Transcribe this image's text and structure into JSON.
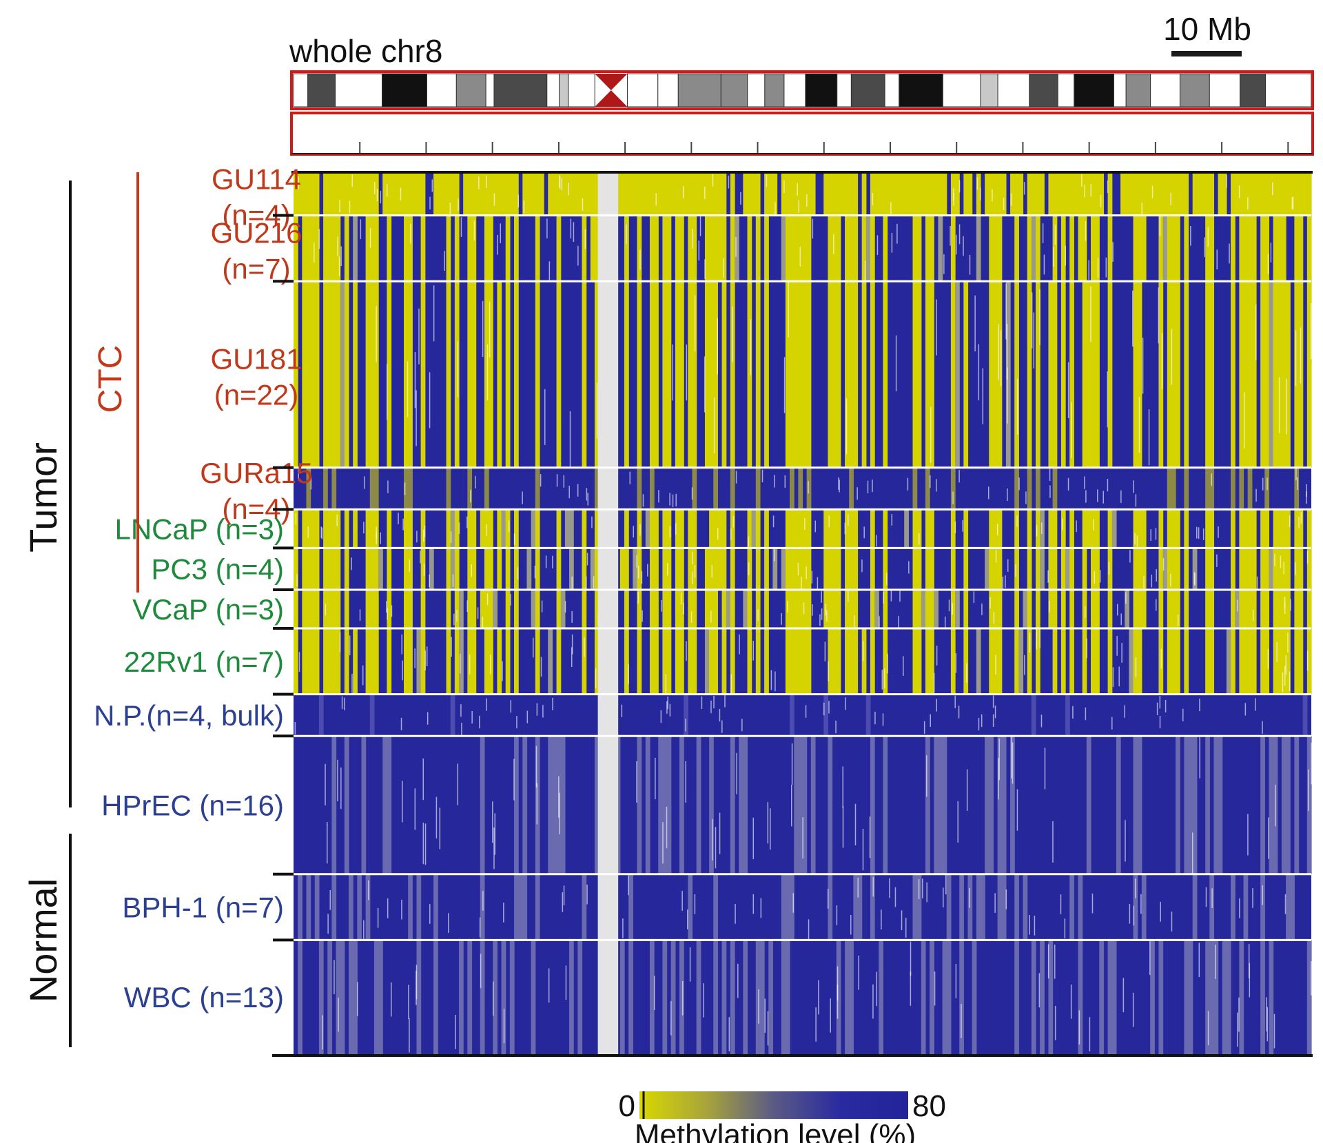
{
  "chart_data": {
    "type": "heatmap",
    "title": "whole chr8",
    "scale_bar_label": "10 Mb",
    "colorbar": {
      "min_label": "0",
      "max_label": "80",
      "label": "Methylation level (%)",
      "range": [
        0,
        80
      ],
      "colors": [
        "#d8d800",
        "#a8a43c",
        "#5a5a86",
        "#2a2aa0",
        "#24249a"
      ]
    },
    "groups": [
      {
        "name": "Tumor",
        "color": "#111111"
      },
      {
        "name": "Normal",
        "color": "#111111"
      }
    ],
    "subgroups": [
      {
        "name": "CTC",
        "color": "#c0391b"
      }
    ],
    "rows": [
      {
        "label": "GU114",
        "n_label": "(n=4)",
        "n": 4,
        "group": "Tumor",
        "subgroup": "CTC",
        "label_color": "#c0391b",
        "pattern": "hyper"
      },
      {
        "label": "GU216",
        "n_label": "(n=7)",
        "n": 7,
        "group": "Tumor",
        "subgroup": "CTC",
        "label_color": "#c0391b",
        "pattern": "mixed"
      },
      {
        "label": "GU181",
        "n_label": "(n=22)",
        "n": 22,
        "group": "Tumor",
        "subgroup": "CTC",
        "label_color": "#c0391b",
        "pattern": "mixed"
      },
      {
        "label": "GURa15",
        "n_label": "(n=4)",
        "n": 4,
        "group": "Tumor",
        "subgroup": "CTC",
        "label_color": "#c0391b",
        "pattern": "hypo"
      },
      {
        "label": "LNCaP (n=3)",
        "n_label": "",
        "n": 3,
        "group": "Tumor",
        "label_color": "#1e8a3c",
        "pattern": "mixed"
      },
      {
        "label": "PC3 (n=4)",
        "n_label": "",
        "n": 4,
        "group": "Tumor",
        "label_color": "#1e8a3c",
        "pattern": "mixed"
      },
      {
        "label": "VCaP (n=3)",
        "n_label": "",
        "n": 3,
        "group": "Tumor",
        "label_color": "#1e8a3c",
        "pattern": "mixed"
      },
      {
        "label": "22Rv1 (n=7)",
        "n_label": "",
        "n": 7,
        "group": "Tumor",
        "label_color": "#1e8a3c",
        "pattern": "mixed"
      },
      {
        "label": "N.P.(n=4, bulk)",
        "n_label": "",
        "n": 4,
        "group": "Normal",
        "label_color": "#2b3f93",
        "pattern": "uniform"
      },
      {
        "label": "HPrEC (n=16)",
        "n_label": "",
        "n": 16,
        "group": "Normal",
        "label_color": "#2b3f93",
        "pattern": "speckled"
      },
      {
        "label": "BPH-1 (n=7)",
        "n_label": "",
        "n": 7,
        "group": "Normal",
        "label_color": "#2b3f93",
        "pattern": "speckled"
      },
      {
        "label": "WBC (n=13)",
        "n_label": "",
        "n": 13,
        "group": "Normal",
        "label_color": "#2b3f93",
        "pattern": "speckled"
      }
    ],
    "ideogram_bands": [
      {
        "start": 0.0,
        "end": 0.014,
        "stain": "gneg"
      },
      {
        "start": 0.014,
        "end": 0.041,
        "stain": "gpos75"
      },
      {
        "start": 0.041,
        "end": 0.087,
        "stain": "gneg"
      },
      {
        "start": 0.087,
        "end": 0.131,
        "stain": "gpos100"
      },
      {
        "start": 0.131,
        "end": 0.16,
        "stain": "gneg"
      },
      {
        "start": 0.16,
        "end": 0.189,
        "stain": "gpos50"
      },
      {
        "start": 0.189,
        "end": 0.197,
        "stain": "gneg"
      },
      {
        "start": 0.197,
        "end": 0.249,
        "stain": "gpos75"
      },
      {
        "start": 0.249,
        "end": 0.261,
        "stain": "gneg"
      },
      {
        "start": 0.261,
        "end": 0.27,
        "stain": "gvar"
      },
      {
        "start": 0.27,
        "end": 0.296,
        "stain": "gneg"
      },
      {
        "start": 0.296,
        "end": 0.328,
        "stain": "acen"
      },
      {
        "start": 0.328,
        "end": 0.358,
        "stain": "gneg"
      },
      {
        "start": 0.358,
        "end": 0.378,
        "stain": "gneg"
      },
      {
        "start": 0.378,
        "end": 0.42,
        "stain": "gpos50"
      },
      {
        "start": 0.42,
        "end": 0.446,
        "stain": "gpos50"
      },
      {
        "start": 0.446,
        "end": 0.463,
        "stain": "gneg"
      },
      {
        "start": 0.463,
        "end": 0.482,
        "stain": "gpos50"
      },
      {
        "start": 0.482,
        "end": 0.503,
        "stain": "gneg"
      },
      {
        "start": 0.503,
        "end": 0.534,
        "stain": "gpos100"
      },
      {
        "start": 0.534,
        "end": 0.548,
        "stain": "gneg"
      },
      {
        "start": 0.548,
        "end": 0.581,
        "stain": "gpos75"
      },
      {
        "start": 0.581,
        "end": 0.595,
        "stain": "gneg"
      },
      {
        "start": 0.595,
        "end": 0.638,
        "stain": "gpos100"
      },
      {
        "start": 0.638,
        "end": 0.675,
        "stain": "gneg"
      },
      {
        "start": 0.675,
        "end": 0.692,
        "stain": "gvar"
      },
      {
        "start": 0.692,
        "end": 0.723,
        "stain": "gneg"
      },
      {
        "start": 0.723,
        "end": 0.751,
        "stain": "gpos75"
      },
      {
        "start": 0.751,
        "end": 0.767,
        "stain": "gneg"
      },
      {
        "start": 0.767,
        "end": 0.806,
        "stain": "gpos100"
      },
      {
        "start": 0.806,
        "end": 0.818,
        "stain": "gneg"
      },
      {
        "start": 0.818,
        "end": 0.842,
        "stain": "gpos50"
      },
      {
        "start": 0.842,
        "end": 0.871,
        "stain": "gneg"
      },
      {
        "start": 0.871,
        "end": 0.9,
        "stain": "gpos50"
      },
      {
        "start": 0.9,
        "end": 0.93,
        "stain": "gneg"
      },
      {
        "start": 0.93,
        "end": 0.955,
        "stain": "gpos75"
      },
      {
        "start": 0.955,
        "end": 1.0,
        "stain": "gneg"
      }
    ],
    "centromere_gap": {
      "start": 0.299,
      "end": 0.319
    },
    "ideogram_tick_count": 15,
    "grid": false,
    "legend_position": "bottom-center"
  }
}
